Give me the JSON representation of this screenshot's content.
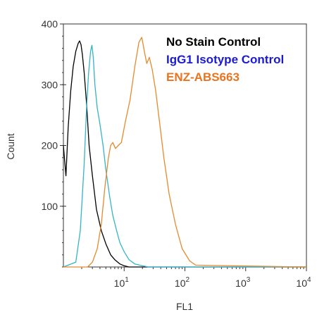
{
  "chart_data": {
    "type": "line",
    "title": "",
    "xlabel": "FL1",
    "ylabel": "Count",
    "x_scale": "log",
    "xlim": [
      1,
      10000
    ],
    "ylim": [
      0,
      400
    ],
    "x_ticks": [
      {
        "base": "10",
        "exp": "1",
        "value": 10
      },
      {
        "base": "10",
        "exp": "2",
        "value": 100
      },
      {
        "base": "10",
        "exp": "3",
        "value": 1000
      },
      {
        "base": "10",
        "exp": "4",
        "value": 10000
      }
    ],
    "y_ticks": [
      "100",
      "200",
      "300",
      "400"
    ],
    "legend_position": "top-right",
    "series": [
      {
        "name": "No Stain Control",
        "color": "#000000",
        "x": [
          1.0,
          1.1,
          1.2,
          1.32,
          1.45,
          1.6,
          1.75,
          1.85,
          1.95,
          2.05,
          2.2,
          2.4,
          2.65,
          3.0,
          3.5,
          4.2,
          5.0,
          6.0,
          7.0,
          8.5,
          10.0,
          12.0,
          10000
        ],
        "values": [
          200,
          150,
          230,
          290,
          330,
          355,
          368,
          372,
          366,
          350,
          320,
          270,
          200,
          150,
          95,
          60,
          38,
          20,
          12,
          5,
          2,
          0,
          0
        ]
      },
      {
        "name": "IgG1 Isotype Control",
        "color": "#33b5c8",
        "x": [
          1.0,
          1.6,
          1.9,
          2.2,
          2.4,
          2.6,
          2.8,
          2.95,
          3.1,
          3.3,
          3.6,
          4.0,
          4.5,
          5.0,
          5.8,
          6.5,
          7.5,
          8.5,
          10.0,
          12.0,
          15.0,
          20.0,
          25.0,
          10000
        ],
        "values": [
          0,
          8,
          60,
          170,
          260,
          320,
          355,
          365,
          345,
          300,
          262,
          235,
          200,
          160,
          115,
          85,
          60,
          40,
          25,
          12,
          5,
          2,
          0,
          0
        ]
      },
      {
        "name": "ENZ-ABS663",
        "color": "#e68a2e",
        "x": [
          1.0,
          2.5,
          3.0,
          3.6,
          4.2,
          4.8,
          5.5,
          6.0,
          6.5,
          7.2,
          8.0,
          9.0,
          10.5,
          12.5,
          15.0,
          17.5,
          19.5,
          21.5,
          23.5,
          26.0,
          29.0,
          33.0,
          38.0,
          45.0,
          55.0,
          70.0,
          90.0,
          120.0,
          150.0,
          10000
        ],
        "values": [
          0,
          0,
          8,
          30,
          70,
          130,
          180,
          200,
          205,
          195,
          200,
          205,
          240,
          275,
          330,
          370,
          378,
          355,
          335,
          345,
          325,
          290,
          240,
          180,
          120,
          70,
          30,
          10,
          3,
          0
        ]
      }
    ]
  }
}
